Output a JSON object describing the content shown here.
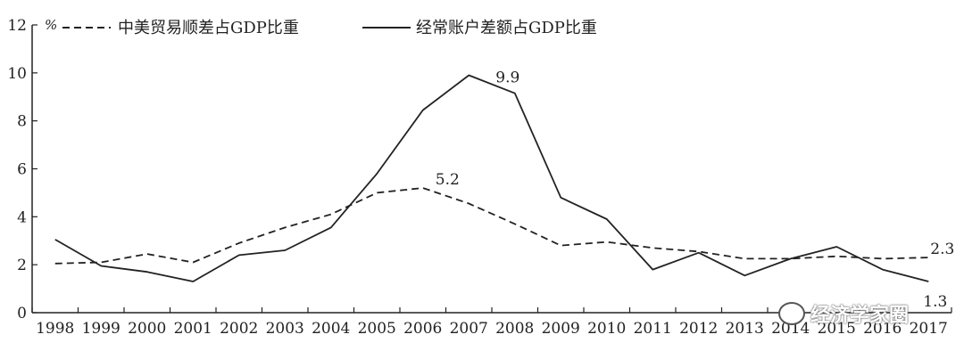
{
  "chart_data": {
    "type": "line",
    "unit": "%",
    "x": [
      "1998",
      "1999",
      "2000",
      "2001",
      "2002",
      "2003",
      "2004",
      "2005",
      "2006",
      "2007",
      "2008",
      "2009",
      "2010",
      "2011",
      "2012",
      "2013",
      "2014",
      "2015",
      "2016",
      "2017"
    ],
    "ylim": [
      0,
      12
    ],
    "yticks": [
      0,
      2,
      4,
      6,
      8,
      10,
      12
    ],
    "grid": false,
    "legend_position": "top",
    "series": [
      {
        "name": "中美贸易顺差占GDP比重",
        "style": "dashed",
        "values": [
          2.05,
          2.1,
          2.45,
          2.1,
          2.9,
          3.55,
          4.1,
          5.0,
          5.2,
          4.55,
          3.7,
          2.8,
          2.95,
          2.7,
          2.55,
          2.25,
          2.25,
          2.35,
          2.25,
          2.3
        ]
      },
      {
        "name": "经常账户差额占GDP比重",
        "style": "solid",
        "values": [
          3.05,
          1.95,
          1.7,
          1.3,
          2.4,
          2.6,
          3.55,
          5.8,
          8.45,
          9.9,
          9.15,
          4.8,
          3.9,
          1.8,
          2.5,
          1.55,
          2.25,
          2.75,
          1.8,
          1.3
        ]
      }
    ],
    "annotations": [
      {
        "series": 0,
        "index": 8,
        "text": "5.2"
      },
      {
        "series": 1,
        "index": 9,
        "text": "9.9"
      },
      {
        "series": 0,
        "index": 19,
        "text": "2.3"
      },
      {
        "series": 1,
        "index": 19,
        "text": "1.3"
      }
    ],
    "colors": {
      "line": "#222222",
      "axis": "#222222"
    }
  },
  "watermark": {
    "text": "经济学家圈",
    "icon": "wechat-icon"
  }
}
